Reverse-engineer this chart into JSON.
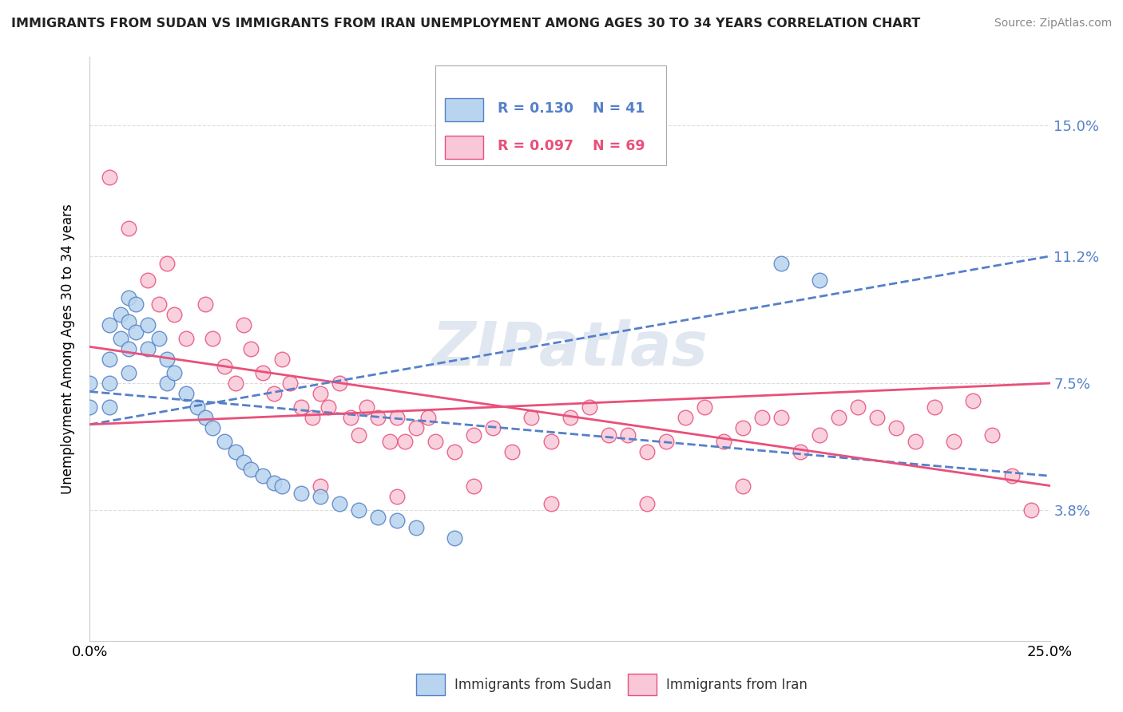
{
  "title": "IMMIGRANTS FROM SUDAN VS IMMIGRANTS FROM IRAN UNEMPLOYMENT AMONG AGES 30 TO 34 YEARS CORRELATION CHART",
  "source": "Source: ZipAtlas.com",
  "ylabel": "Unemployment Among Ages 30 to 34 years",
  "xlim": [
    0.0,
    0.25
  ],
  "ylim": [
    0.0,
    0.17
  ],
  "ytick_positions": [
    0.038,
    0.075,
    0.112,
    0.15
  ],
  "ytick_labels": [
    "3.8%",
    "7.5%",
    "11.2%",
    "15.0%"
  ],
  "sudan_R": 0.13,
  "sudan_N": 41,
  "iran_R": 0.097,
  "iran_N": 69,
  "sudan_color": "#b8d4ee",
  "iran_color": "#f9c8d8",
  "sudan_line_color": "#5580c8",
  "iran_line_color": "#e8507a",
  "sudan_scatter": [
    [
      0.0,
      0.075
    ],
    [
      0.0,
      0.068
    ],
    [
      0.005,
      0.092
    ],
    [
      0.005,
      0.082
    ],
    [
      0.005,
      0.075
    ],
    [
      0.005,
      0.068
    ],
    [
      0.008,
      0.095
    ],
    [
      0.008,
      0.088
    ],
    [
      0.01,
      0.1
    ],
    [
      0.01,
      0.093
    ],
    [
      0.01,
      0.085
    ],
    [
      0.01,
      0.078
    ],
    [
      0.012,
      0.098
    ],
    [
      0.012,
      0.09
    ],
    [
      0.015,
      0.092
    ],
    [
      0.015,
      0.085
    ],
    [
      0.018,
      0.088
    ],
    [
      0.02,
      0.082
    ],
    [
      0.02,
      0.075
    ],
    [
      0.022,
      0.078
    ],
    [
      0.025,
      0.072
    ],
    [
      0.028,
      0.068
    ],
    [
      0.03,
      0.065
    ],
    [
      0.032,
      0.062
    ],
    [
      0.035,
      0.058
    ],
    [
      0.038,
      0.055
    ],
    [
      0.04,
      0.052
    ],
    [
      0.042,
      0.05
    ],
    [
      0.045,
      0.048
    ],
    [
      0.048,
      0.046
    ],
    [
      0.05,
      0.045
    ],
    [
      0.055,
      0.043
    ],
    [
      0.06,
      0.042
    ],
    [
      0.065,
      0.04
    ],
    [
      0.07,
      0.038
    ],
    [
      0.075,
      0.036
    ],
    [
      0.08,
      0.035
    ],
    [
      0.085,
      0.033
    ],
    [
      0.095,
      0.03
    ],
    [
      0.18,
      0.11
    ],
    [
      0.19,
      0.105
    ]
  ],
  "iran_scatter": [
    [
      0.005,
      0.135
    ],
    [
      0.01,
      0.12
    ],
    [
      0.015,
      0.105
    ],
    [
      0.018,
      0.098
    ],
    [
      0.02,
      0.11
    ],
    [
      0.022,
      0.095
    ],
    [
      0.025,
      0.088
    ],
    [
      0.03,
      0.098
    ],
    [
      0.032,
      0.088
    ],
    [
      0.035,
      0.08
    ],
    [
      0.038,
      0.075
    ],
    [
      0.04,
      0.092
    ],
    [
      0.042,
      0.085
    ],
    [
      0.045,
      0.078
    ],
    [
      0.048,
      0.072
    ],
    [
      0.05,
      0.082
    ],
    [
      0.052,
      0.075
    ],
    [
      0.055,
      0.068
    ],
    [
      0.058,
      0.065
    ],
    [
      0.06,
      0.072
    ],
    [
      0.062,
      0.068
    ],
    [
      0.065,
      0.075
    ],
    [
      0.068,
      0.065
    ],
    [
      0.07,
      0.06
    ],
    [
      0.072,
      0.068
    ],
    [
      0.075,
      0.065
    ],
    [
      0.078,
      0.058
    ],
    [
      0.08,
      0.065
    ],
    [
      0.082,
      0.058
    ],
    [
      0.085,
      0.062
    ],
    [
      0.088,
      0.065
    ],
    [
      0.09,
      0.058
    ],
    [
      0.095,
      0.055
    ],
    [
      0.1,
      0.06
    ],
    [
      0.105,
      0.062
    ],
    [
      0.11,
      0.055
    ],
    [
      0.115,
      0.065
    ],
    [
      0.12,
      0.058
    ],
    [
      0.125,
      0.065
    ],
    [
      0.13,
      0.068
    ],
    [
      0.135,
      0.06
    ],
    [
      0.14,
      0.06
    ],
    [
      0.145,
      0.055
    ],
    [
      0.15,
      0.058
    ],
    [
      0.155,
      0.065
    ],
    [
      0.16,
      0.068
    ],
    [
      0.165,
      0.058
    ],
    [
      0.17,
      0.062
    ],
    [
      0.175,
      0.065
    ],
    [
      0.18,
      0.065
    ],
    [
      0.185,
      0.055
    ],
    [
      0.19,
      0.06
    ],
    [
      0.195,
      0.065
    ],
    [
      0.2,
      0.068
    ],
    [
      0.205,
      0.065
    ],
    [
      0.21,
      0.062
    ],
    [
      0.215,
      0.058
    ],
    [
      0.22,
      0.068
    ],
    [
      0.225,
      0.058
    ],
    [
      0.23,
      0.07
    ],
    [
      0.235,
      0.06
    ],
    [
      0.24,
      0.048
    ],
    [
      0.245,
      0.038
    ],
    [
      0.06,
      0.045
    ],
    [
      0.08,
      0.042
    ],
    [
      0.1,
      0.045
    ],
    [
      0.12,
      0.04
    ],
    [
      0.145,
      0.04
    ],
    [
      0.17,
      0.045
    ]
  ],
  "watermark": "ZIPatlas",
  "watermark_color": "#ccd8e8",
  "grid_color": "#dddddd",
  "background_color": "#ffffff"
}
